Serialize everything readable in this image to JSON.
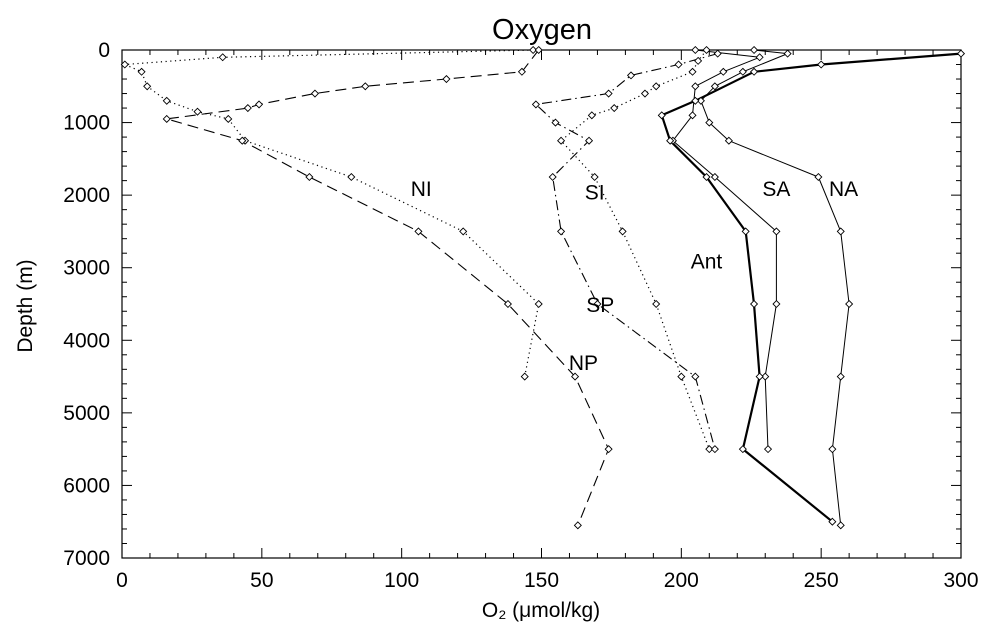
{
  "chart_data": {
    "type": "line",
    "title": "Oxygen",
    "xlabel": "O₂ (μmol/kg)",
    "ylabel": "Depth (m)",
    "xlim": [
      0,
      300
    ],
    "ylim": [
      7000,
      0
    ],
    "y_inverted": true,
    "xticks": [
      0,
      50,
      100,
      150,
      200,
      250,
      300
    ],
    "yticks": [
      0,
      1000,
      2000,
      3000,
      4000,
      5000,
      6000,
      7000
    ],
    "grid": false,
    "legend": "none",
    "series": [
      {
        "name": "NA",
        "style": "solid",
        "points": [
          [
            226,
            0
          ],
          [
            238,
            50
          ],
          [
            222,
            300
          ],
          [
            212,
            500
          ],
          [
            207,
            700
          ],
          [
            210,
            1000
          ],
          [
            217,
            1250
          ],
          [
            249,
            1750
          ],
          [
            257,
            2500
          ],
          [
            260,
            3500
          ],
          [
            257,
            4500
          ],
          [
            254,
            5500
          ],
          [
            257,
            6550
          ]
        ]
      },
      {
        "name": "SA",
        "style": "solid",
        "points": [
          [
            205,
            0
          ],
          [
            228,
            100
          ],
          [
            215,
            300
          ],
          [
            205,
            500
          ],
          [
            204,
            900
          ],
          [
            197,
            1250
          ],
          [
            212,
            1750
          ],
          [
            234,
            2500
          ],
          [
            234,
            3500
          ],
          [
            230,
            4500
          ],
          [
            231,
            5500
          ]
        ]
      },
      {
        "name": "Ant",
        "style": "solid-thick",
        "points": [
          [
            300,
            50
          ],
          [
            250,
            200
          ],
          [
            226,
            300
          ],
          [
            205,
            700
          ],
          [
            193,
            900
          ],
          [
            196,
            1250
          ],
          [
            209,
            1750
          ],
          [
            223,
            2500
          ],
          [
            226,
            3500
          ],
          [
            228,
            4500
          ],
          [
            222,
            5500
          ],
          [
            254,
            6500
          ]
        ]
      },
      {
        "name": "SI",
        "style": "dotted",
        "points": [
          [
            209,
            0
          ],
          [
            206,
            150
          ],
          [
            204,
            300
          ],
          [
            191,
            500
          ],
          [
            187,
            600
          ],
          [
            176,
            800
          ],
          [
            168,
            900
          ],
          [
            157,
            1250
          ],
          [
            169,
            1750
          ],
          [
            179,
            2500
          ],
          [
            191,
            3500
          ],
          [
            200,
            4500
          ],
          [
            210,
            5500
          ]
        ]
      },
      {
        "name": "SP",
        "style": "dash-dot",
        "points": [
          [
            213,
            50
          ],
          [
            199,
            200
          ],
          [
            182,
            350
          ],
          [
            174,
            600
          ],
          [
            148,
            750
          ],
          [
            155,
            1000
          ],
          [
            167,
            1250
          ],
          [
            154,
            1750
          ],
          [
            157,
            2500
          ],
          [
            170,
            3500
          ],
          [
            205,
            4500
          ],
          [
            212,
            5500
          ]
        ]
      },
      {
        "name": "NI",
        "style": "dotted",
        "points": [
          [
            147,
            0
          ],
          [
            36,
            100
          ],
          [
            1,
            200
          ],
          [
            7,
            300
          ],
          [
            9,
            500
          ],
          [
            16,
            700
          ],
          [
            27,
            850
          ],
          [
            38,
            950
          ],
          [
            44,
            1250
          ],
          [
            82,
            1750
          ],
          [
            122,
            2500
          ],
          [
            149,
            3500
          ],
          [
            144,
            4500
          ]
        ]
      },
      {
        "name": "NP",
        "style": "dashed",
        "points": [
          [
            149,
            0
          ],
          [
            143,
            300
          ],
          [
            116,
            400
          ],
          [
            87,
            500
          ],
          [
            69,
            600
          ],
          [
            49,
            750
          ],
          [
            45,
            800
          ],
          [
            16,
            950
          ],
          [
            43,
            1250
          ],
          [
            67,
            1750
          ],
          [
            106,
            2500
          ],
          [
            138,
            3500
          ],
          [
            162,
            4500
          ],
          [
            174,
            5500
          ],
          [
            163,
            6550
          ]
        ]
      }
    ],
    "annotations": [
      {
        "text": "NA",
        "x": 258,
        "y": 1900
      },
      {
        "text": "SA",
        "x": 234,
        "y": 1900
      },
      {
        "text": "Ant",
        "x": 209,
        "y": 2900
      },
      {
        "text": "SI",
        "x": 169,
        "y": 1950
      },
      {
        "text": "SP",
        "x": 171,
        "y": 3500
      },
      {
        "text": "NI",
        "x": 107,
        "y": 1900
      },
      {
        "text": "NP",
        "x": 165,
        "y": 4300
      }
    ]
  }
}
